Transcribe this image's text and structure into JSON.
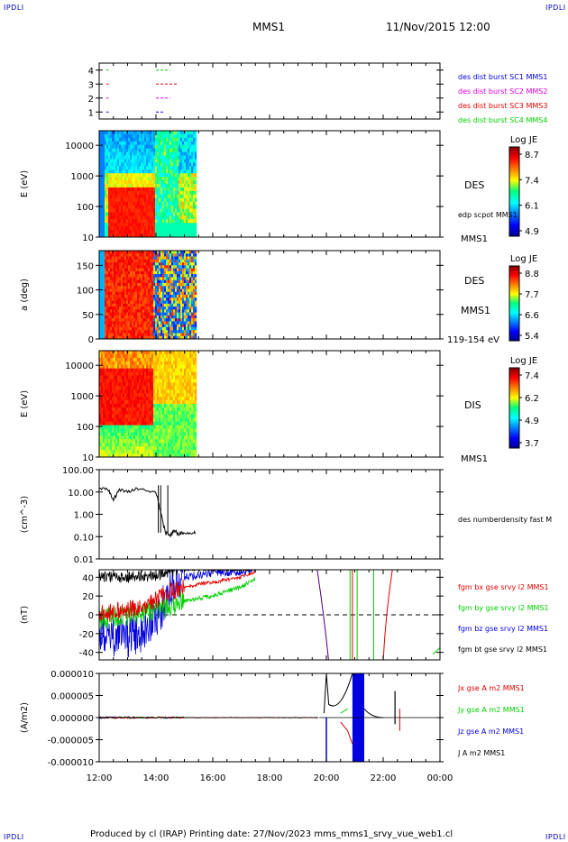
{
  "corners": {
    "tl": "IPDLI",
    "tr": "IPDLI",
    "bl": "IPDLI",
    "br": "IPDLI"
  },
  "header": {
    "spacecraft": "MMS1",
    "datetime": "11/Nov/2015 12:00"
  },
  "footer": {
    "text": "Produced by cl (IRAP)   Printing date: 27/Nov/2023   mms_mms1_srvy_vue_web1.cl"
  },
  "colors": {
    "red": "#e00000",
    "green": "#00d000",
    "blue": "#0000e0",
    "magenta": "#e000e0",
    "black": "#000000"
  },
  "x_axis": {
    "ticks": [
      "12:00",
      "14:00",
      "16:00",
      "18:00",
      "20:00",
      "22:00",
      "00:00"
    ]
  },
  "panels": {
    "avail": {
      "yticks": [
        "4",
        "3",
        "2",
        "1"
      ],
      "legend": [
        {
          "text": "des dist burst SC1 MMS1",
          "color": "#0000e0"
        },
        {
          "text": "des dist burst SC2 MMS2",
          "color": "#e000e0"
        },
        {
          "text": "des dist burst SC3 MMS3",
          "color": "#e00000"
        },
        {
          "text": "des dist burst SC4 MMS4",
          "color": "#00d000"
        }
      ]
    },
    "des_e": {
      "ylabel": "E (eV)",
      "yticks": [
        "10000",
        "1000",
        "100",
        "10"
      ],
      "label_species": "DES",
      "label_extra": "edp scpot MMS1",
      "label_sc": "MMS1",
      "cbar_title": "Log JE",
      "cbar_ticks": [
        "8.7",
        "7.4",
        "6.1",
        "4.9"
      ]
    },
    "des_pa": {
      "ylabel": "a (deg)",
      "yticks": [
        "150",
        "100",
        "50",
        "0"
      ],
      "label_species": "DES",
      "label_sc": "MMS1",
      "label_extra": "119-154 eV",
      "cbar_title": "Log JE",
      "cbar_ticks": [
        "8.8",
        "7.7",
        "6.6",
        "5.4"
      ]
    },
    "dis_e": {
      "ylabel": "E (eV)",
      "yticks": [
        "10000",
        "1000",
        "100",
        "10"
      ],
      "label_species": "DIS",
      "label_sc": "MMS1",
      "cbar_title": "Log JE",
      "cbar_ticks": [
        "7.4",
        "6.2",
        "4.9",
        "3.7"
      ]
    },
    "density": {
      "ylabel": "(cm^-3)",
      "yticks": [
        "100.00",
        "10.00",
        "1.00",
        "0.10",
        "0.01"
      ],
      "legend": "des numberdensity fast M"
    },
    "fgm": {
      "ylabel": "(nT)",
      "yticks": [
        "40",
        "20",
        "0",
        "-20",
        "-40"
      ],
      "legend": [
        {
          "text": "fgm bx gse srvy l2 MMS1",
          "color": "#e00000"
        },
        {
          "text": "fgm by gse srvy l2 MMS1",
          "color": "#00d000"
        },
        {
          "text": "fgm bz gse srvy l2 MMS1",
          "color": "#0000e0"
        },
        {
          "text": "fgm bt gse srvy l2 MMS1",
          "color": "#000000"
        }
      ]
    },
    "current": {
      "ylabel": "(A/m2)",
      "yticks": [
        "0.000010",
        "0.000005",
        "0.000000",
        "-0.000005",
        "-0.000010"
      ],
      "legend": [
        {
          "text": "Jx gse A m2 MMS1",
          "color": "#e00000"
        },
        {
          "text": "Jy gse A m2 MMS1",
          "color": "#00d000"
        },
        {
          "text": "Jz gse A m2 MMS1",
          "color": "#0000e0"
        },
        {
          "text": "J A m2 MMS1",
          "color": "#000000"
        }
      ]
    }
  },
  "chart_data": [
    {
      "type": "scatter",
      "title": "",
      "ylabel": "",
      "ylim": [
        0.5,
        4.5
      ],
      "series": [
        {
          "name": "des dist burst SC1 MMS1",
          "y": 1,
          "segments": [
            [
              "12:15",
              "12:20"
            ],
            [
              "14:00",
              "14:15"
            ]
          ]
        },
        {
          "name": "des dist burst SC2 MMS2",
          "y": 2,
          "segments": [
            [
              "12:15",
              "12:20"
            ],
            [
              "14:00",
              "14:30"
            ]
          ]
        },
        {
          "name": "des dist burst SC3 MMS3",
          "y": 3,
          "segments": [
            [
              "12:15",
              "12:20"
            ],
            [
              "14:00",
              "14:45"
            ]
          ]
        },
        {
          "name": "des dist burst SC4 MMS4",
          "y": 4,
          "segments": [
            [
              "12:15",
              "12:20"
            ],
            [
              "14:00",
              "14:30"
            ]
          ]
        }
      ]
    },
    {
      "type": "heatmap",
      "ylabel": "E (eV)",
      "yscale": "log",
      "ylim": [
        10,
        30000
      ],
      "data_end": "15:25",
      "colorbar": {
        "title": "Log JE",
        "range": [
          4.9,
          8.7
        ]
      }
    },
    {
      "type": "heatmap",
      "ylabel": "a (deg)",
      "ylim": [
        0,
        180
      ],
      "data_end": "15:25",
      "colorbar": {
        "title": "Log JE",
        "range": [
          5.4,
          8.8
        ]
      }
    },
    {
      "type": "heatmap",
      "ylabel": "E (eV)",
      "yscale": "log",
      "ylim": [
        10,
        30000
      ],
      "data_end": "15:25",
      "colorbar": {
        "title": "Log JE",
        "range": [
          3.7,
          7.4
        ]
      }
    },
    {
      "type": "line",
      "ylabel": "(cm^-3)",
      "yscale": "log",
      "ylim": [
        0.01,
        100
      ],
      "series": [
        {
          "name": "des numberdensity fast M",
          "x": [
            "12:00",
            "12:20",
            "12:30",
            "12:40",
            "13:00",
            "13:20",
            "13:40",
            "14:00",
            "14:10",
            "14:20",
            "14:30",
            "14:40",
            "14:50",
            "15:00",
            "15:15",
            "15:25"
          ],
          "y": [
            15,
            12,
            4,
            12,
            11,
            14,
            12,
            10,
            1.2,
            0.15,
            0.12,
            0.18,
            0.13,
            0.15,
            0.13,
            0.15
          ]
        }
      ]
    },
    {
      "type": "line",
      "ylabel": "(nT)",
      "ylim": [
        -48,
        48
      ],
      "x": [
        "12:00",
        "13:00",
        "14:00",
        "14:30",
        "15:00",
        "16:00",
        "17:00",
        "17:30"
      ],
      "series": [
        {
          "name": "fgm bx gse srvy l2 MMS1",
          "y": [
            0,
            5,
            15,
            25,
            30,
            35,
            40,
            45
          ]
        },
        {
          "name": "fgm by gse srvy l2 MMS1",
          "y": [
            -5,
            0,
            5,
            10,
            15,
            20,
            30,
            38
          ]
        },
        {
          "name": "fgm bz gse srvy l2 MMS1",
          "y": [
            -20,
            -25,
            -10,
            30,
            40,
            45,
            45,
            48
          ]
        },
        {
          "name": "fgm bt gse srvy l2 MMS1",
          "y": [
            40,
            40,
            42,
            45,
            48,
            48,
            48,
            48
          ]
        }
      ]
    },
    {
      "type": "line",
      "ylabel": "(A/m2)",
      "ylim": [
        -1e-05,
        1e-05
      ],
      "x": [
        "12:00",
        "14:00",
        "16:00",
        "18:00",
        "19:50",
        "20:20",
        "20:40",
        "21:00",
        "21:30",
        "22:00",
        "22:30"
      ],
      "series": [
        {
          "name": "Jx gse A m2 MMS1",
          "y": [
            0,
            0,
            0,
            0,
            0,
            -2.5e-06,
            -1.5e-06,
            0,
            0,
            0,
            -2e-06
          ]
        },
        {
          "name": "Jy gse A m2 MMS1",
          "y": [
            0,
            0,
            0,
            0,
            0,
            2e-06,
            1e-06,
            0,
            0,
            0,
            0
          ]
        },
        {
          "name": "Jz gse A m2 MMS1",
          "y": [
            0,
            0,
            0,
            0,
            0,
            -1e-05,
            1e-05,
            1e-05,
            0,
            0,
            0
          ]
        },
        {
          "name": "J A m2 MMS1",
          "y": [
            0,
            0,
            0,
            0,
            0,
            1e-05,
            4e-06,
            1e-05,
            0,
            5e-06,
            2e-06
          ]
        }
      ]
    }
  ]
}
